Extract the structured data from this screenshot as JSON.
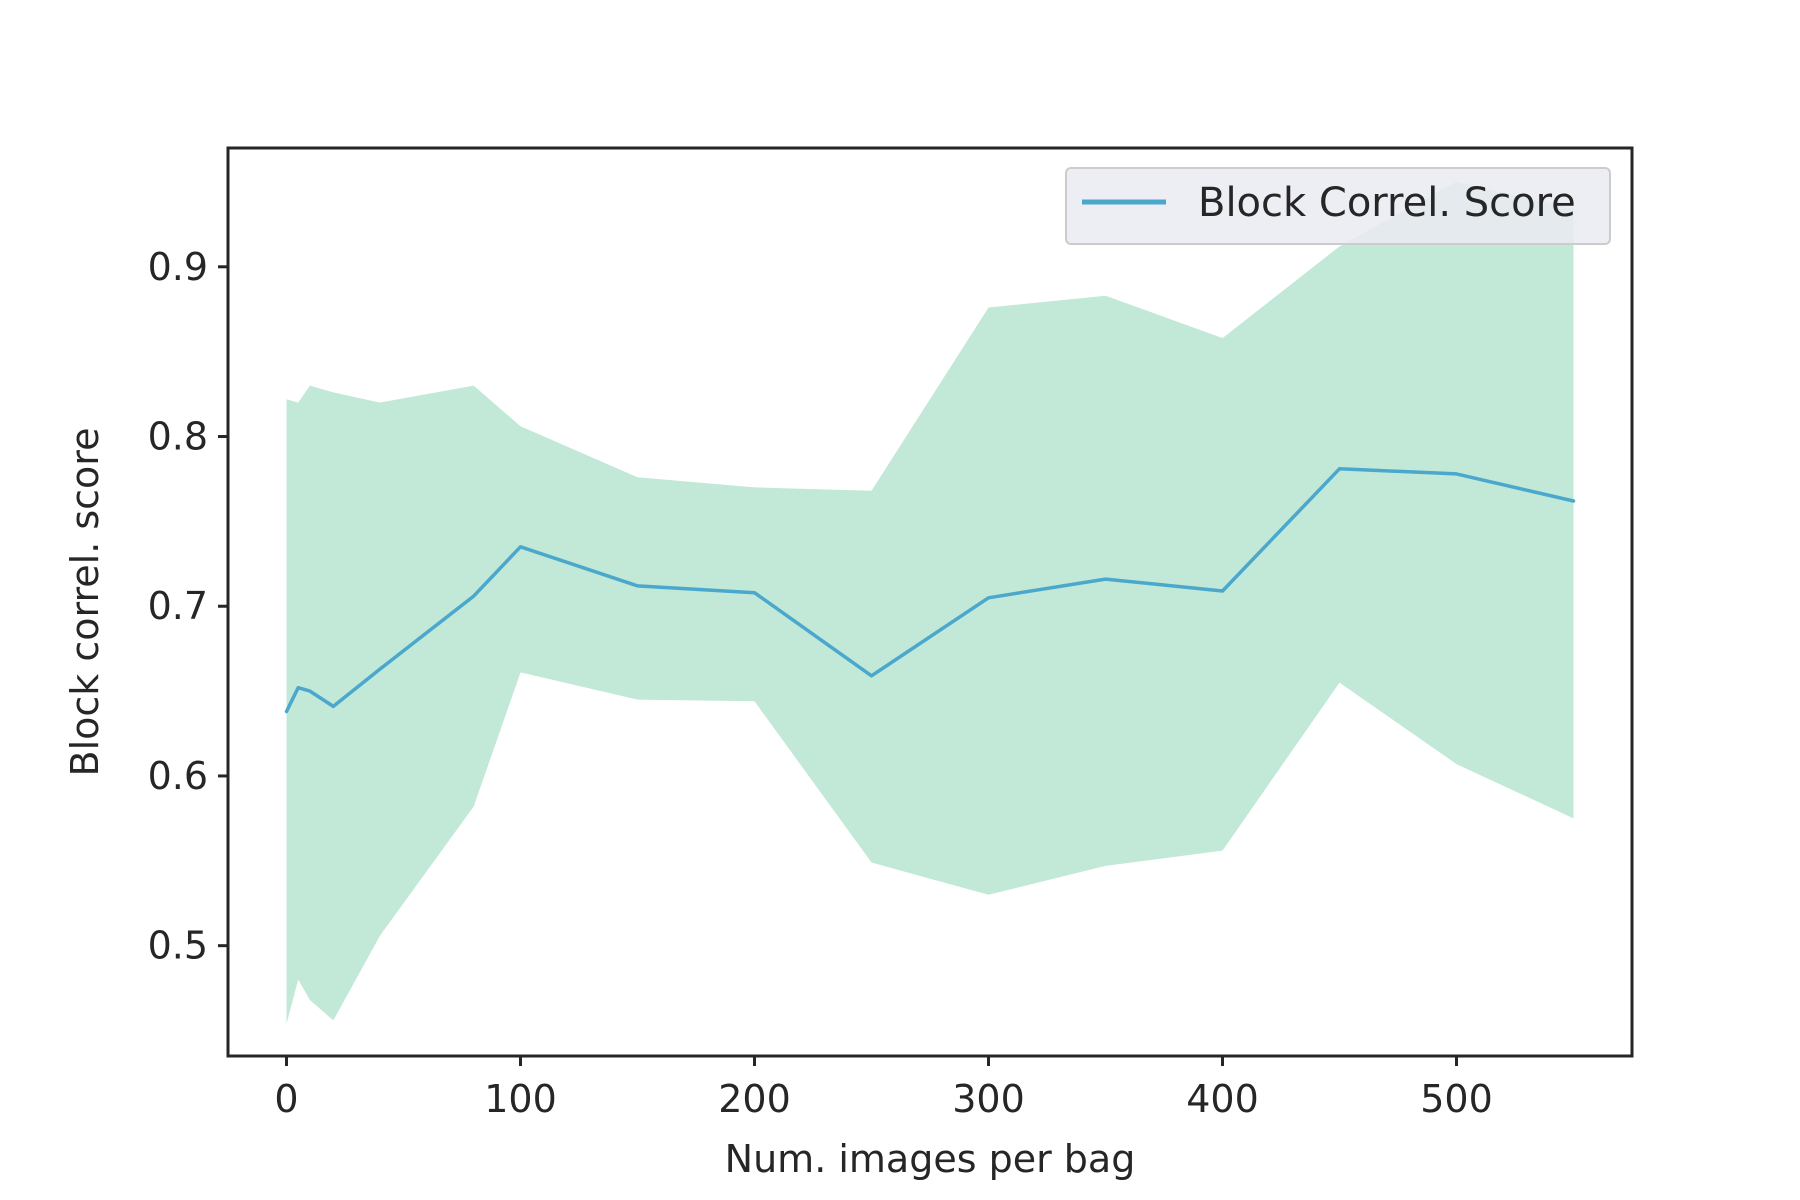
{
  "chart_data": {
    "type": "line",
    "title": "",
    "xlabel": "Num. images per bag",
    "ylabel": "Block correl. score",
    "xlim": [
      -25,
      575
    ],
    "ylim": [
      0.435,
      0.97
    ],
    "x_ticks": [
      0,
      100,
      200,
      300,
      400,
      500
    ],
    "y_ticks": [
      0.5,
      0.6,
      0.7,
      0.8,
      0.9
    ],
    "x_tick_labels": [
      "0",
      "100",
      "200",
      "300",
      "400",
      "500"
    ],
    "y_tick_labels": [
      "0.5",
      "0.6",
      "0.7",
      "0.8",
      "0.9"
    ],
    "grid": false,
    "legend_position": "top-right",
    "series": [
      {
        "name": "Block Correl. Score",
        "color": "#4aa8cc",
        "band_color": "#c2e8d8",
        "x": [
          0,
          5,
          10,
          20,
          40,
          80,
          100,
          150,
          200,
          250,
          300,
          350,
          400,
          450,
          500,
          550
        ],
        "values": [
          0.638,
          0.652,
          0.65,
          0.641,
          0.663,
          0.706,
          0.735,
          0.712,
          0.708,
          0.659,
          0.705,
          0.716,
          0.709,
          0.781,
          0.778,
          0.762
        ],
        "upper": [
          0.822,
          0.82,
          0.83,
          0.826,
          0.82,
          0.83,
          0.806,
          0.776,
          0.77,
          0.768,
          0.876,
          0.883,
          0.858,
          0.912,
          0.95,
          0.934
        ],
        "lower": [
          0.454,
          0.48,
          0.468,
          0.456,
          0.506,
          0.582,
          0.661,
          0.645,
          0.644,
          0.549,
          0.53,
          0.547,
          0.556,
          0.655,
          0.607,
          0.575
        ]
      }
    ]
  }
}
